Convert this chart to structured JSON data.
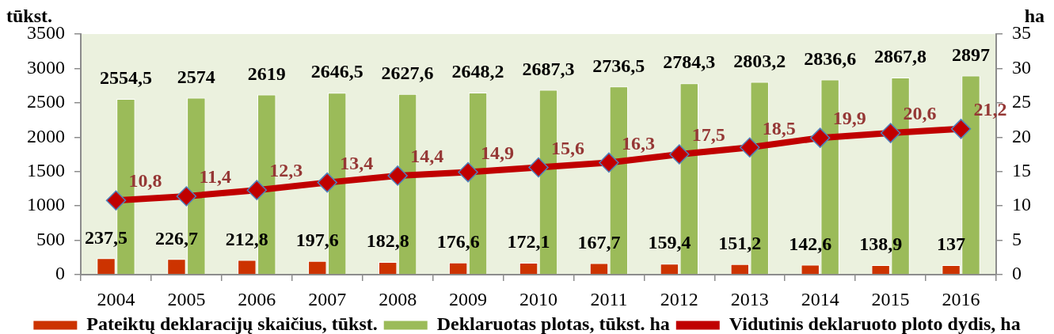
{
  "chart_data": {
    "type": "bar",
    "categories": [
      "2004",
      "2005",
      "2006",
      "2007",
      "2008",
      "2009",
      "2010",
      "2011",
      "2012",
      "2013",
      "2014",
      "2015",
      "2016"
    ],
    "ylabel": "tūkst.",
    "y2label": "ha",
    "ylim": [
      0,
      3500
    ],
    "yticks": [
      0,
      500,
      1000,
      1500,
      2000,
      2500,
      3000,
      3500
    ],
    "y2lim": [
      0,
      35
    ],
    "y2ticks": [
      0,
      5,
      10,
      15,
      20,
      25,
      30,
      35
    ],
    "legend": "bottom",
    "series": [
      {
        "name": "Pateiktų deklaracijų skaičius, tūkst.",
        "color": "#cc3300",
        "values": [
          237.5,
          226.7,
          212.8,
          197.6,
          182.8,
          176.6,
          172.1,
          167.7,
          159.4,
          151.2,
          142.6,
          138.9,
          137
        ],
        "value_labels": [
          "237,5",
          "226,7",
          "212,8",
          "197,6",
          "182,8",
          "176,6",
          "172,1",
          "167,7",
          "159,4",
          "151,2",
          "142,6",
          "138,9",
          "137"
        ]
      },
      {
        "name": "Deklaruotas plotas, tūkst. ha",
        "color": "#9bbb59",
        "values": [
          2554.5,
          2574,
          2619,
          2646.5,
          2627.6,
          2648.2,
          2687.3,
          2736.5,
          2784.3,
          2803.2,
          2836.6,
          2867.8,
          2897
        ],
        "value_labels": [
          "2554,5",
          "2574",
          "2619",
          "2646,5",
          "2627,6",
          "2648,2",
          "2687,3",
          "2736,5",
          "2784,3",
          "2803,2",
          "2836,6",
          "2867,8",
          "2897"
        ]
      },
      {
        "name": "Vidutinis deklaruoto ploto dydis, ha",
        "type": "line",
        "axis": "y2",
        "marker": "diamond",
        "color": "#c00000",
        "values": [
          10.8,
          11.4,
          12.3,
          13.4,
          14.4,
          14.9,
          15.6,
          16.3,
          17.5,
          18.5,
          19.9,
          20.6,
          21.2
        ],
        "value_labels": [
          "10,8",
          "11,4",
          "12,3",
          "13,4",
          "14,4",
          "14,9",
          "15,6",
          "16,3",
          "17,5",
          "18,5",
          "19,9",
          "20,6",
          "21,2"
        ]
      }
    ]
  }
}
